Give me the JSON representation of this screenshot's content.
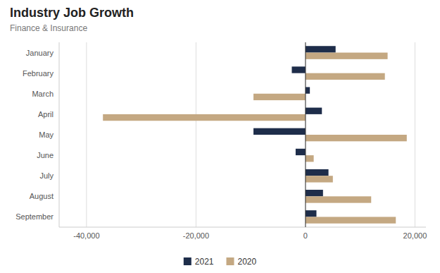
{
  "chart_data": {
    "type": "bar",
    "orientation": "horizontal",
    "title": "Industry Job Growth",
    "subtitle": "Finance & Insurance",
    "categories": [
      "January",
      "February",
      "March",
      "April",
      "May",
      "June",
      "July",
      "August",
      "September"
    ],
    "series": [
      {
        "name": "2021",
        "color": "#1e2d4a",
        "values": [
          5500,
          -2500,
          800,
          3000,
          -9500,
          -1800,
          4200,
          3200,
          2000
        ]
      },
      {
        "name": "2020",
        "color": "#c4a882",
        "values": [
          15000,
          14500,
          -9500,
          -37000,
          18500,
          1500,
          5000,
          12000,
          16500
        ]
      }
    ],
    "xlim": [
      -45000,
      22000
    ],
    "xticks": [
      {
        "value": -40000,
        "label": "-40,000"
      },
      {
        "value": -20000,
        "label": "-20,000"
      },
      0,
      {
        "value": 20000,
        "label": "20,000"
      }
    ],
    "grid": true,
    "legend": "bottom"
  }
}
